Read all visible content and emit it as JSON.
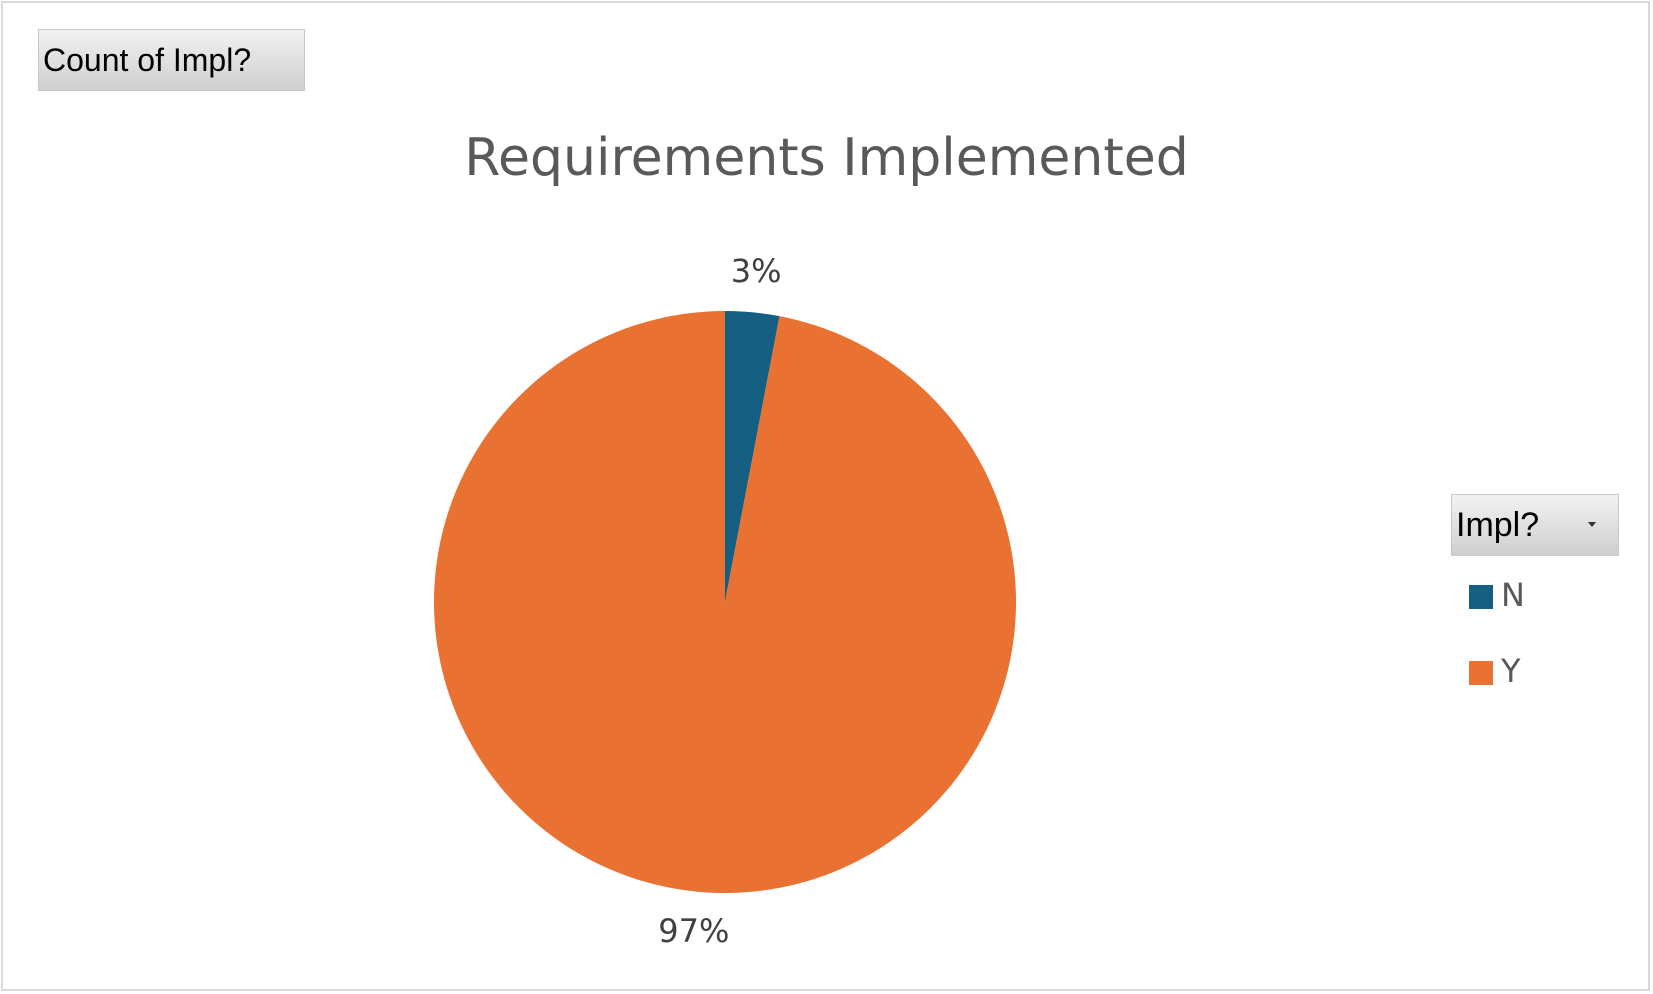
{
  "field_button": {
    "label": "Count of Impl?"
  },
  "legend": {
    "header": "Impl?",
    "dropdown_icon": "chevron-down-icon",
    "items": [
      {
        "label": "N",
        "color": "#156082"
      },
      {
        "label": "Y",
        "color": "#e97132"
      }
    ]
  },
  "chart_data": {
    "type": "pie",
    "title": "Requirements Implemented",
    "categories": [
      "N",
      "Y"
    ],
    "values": [
      3,
      97
    ],
    "data_labels": [
      "3%",
      "97%"
    ],
    "colors": [
      "#156082",
      "#e97132"
    ],
    "legend_placement": "right"
  }
}
